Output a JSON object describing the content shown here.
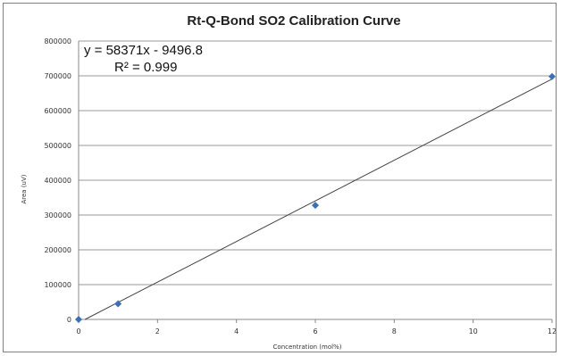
{
  "chart_data": {
    "type": "scatter",
    "title": "Rt-Q-Bond SO2 Calibration Curve",
    "xlabel": "Concentration (mol%)",
    "ylabel": "Area (uV)",
    "xlim": [
      0,
      12
    ],
    "ylim": [
      0,
      800000
    ],
    "xticks": [
      0,
      2,
      4,
      6,
      8,
      10,
      12
    ],
    "yticks": [
      0,
      100000,
      200000,
      300000,
      400000,
      500000,
      600000,
      700000,
      800000
    ],
    "grid": true,
    "legend": "none",
    "series": [
      {
        "points": [
          {
            "x": 0,
            "y": 0
          },
          {
            "x": 1,
            "y": 45000
          },
          {
            "x": 6,
            "y": 328000
          },
          {
            "x": 12,
            "y": 698000
          }
        ]
      }
    ],
    "trendline": {
      "type": "linear",
      "slope": 58371,
      "intercept": -9496.8,
      "equation": "y = 58371x - 9496.8",
      "r_squared": "R² = 0.999"
    },
    "colors": {
      "marker": "#3d6fb5",
      "trendline": "#444444",
      "grid": "#9a9a9a"
    }
  }
}
